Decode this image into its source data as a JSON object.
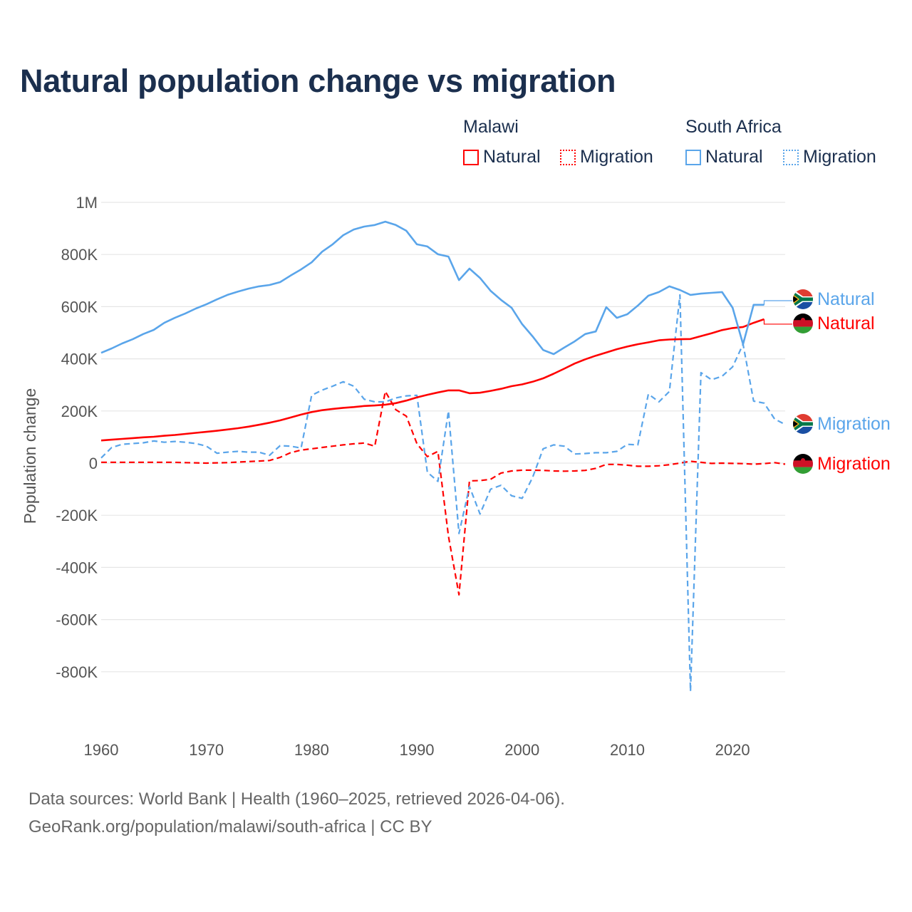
{
  "title": "Natural population change vs migration",
  "legend": {
    "groups": [
      {
        "name": "Malawi",
        "items": [
          "Natural",
          "Migration"
        ]
      },
      {
        "name": "South Africa",
        "items": [
          "Natural",
          "Migration"
        ]
      }
    ]
  },
  "colors": {
    "malawi": "#ff0000",
    "south_africa": "#5aa5ea",
    "grid": "#e6e6e6",
    "title": "#1b2f4e"
  },
  "end_labels": {
    "sa_natural": "Natural",
    "mw_natural": "Natural",
    "sa_migration": "Migration",
    "mw_migration": "Migration"
  },
  "footer": {
    "line1": "Data sources: World Bank | Health (1960–2025, retrieved 2026-04-06).",
    "line2": "GeoRank.org/population/malawi/south-africa | CC BY"
  },
  "chart_data": {
    "type": "line",
    "title": "Natural population change vs migration",
    "xlabel": "",
    "ylabel": "Population change",
    "xlim": [
      1960,
      2025
    ],
    "ylim": [
      -1000000,
      1000000
    ],
    "x_ticks": [
      1960,
      1970,
      1980,
      1990,
      2000,
      2010,
      2020
    ],
    "x_tick_labels": [
      "1960",
      "1970",
      "1980",
      "1990",
      "2000",
      "2010",
      "2020"
    ],
    "y_ticks": [
      1000000,
      800000,
      600000,
      400000,
      200000,
      0,
      -200000,
      -400000,
      -600000,
      -800000
    ],
    "y_tick_labels": [
      "1M",
      "800K",
      "600K",
      "400K",
      "200K",
      "0",
      "-200K",
      "-400K",
      "-600K",
      "-800K"
    ],
    "grid": true,
    "legend_placement": "top-right",
    "units": "thousands",
    "series": [
      {
        "name": "Malawi Natural",
        "country": "Malawi",
        "kind": "natural",
        "start_year": 1960,
        "values": [
          87,
          90,
          93,
          96,
          99,
          101,
          105,
          108,
          112,
          116,
          120,
          124,
          129,
          134,
          140,
          147,
          155,
          164,
          175,
          186,
          196,
          203,
          208,
          212,
          215,
          219,
          221,
          224,
          230,
          240,
          252,
          262,
          271,
          279,
          279,
          268,
          270,
          277,
          285,
          295,
          302,
          312,
          325,
          343,
          362,
          382,
          398,
          412,
          424,
          437,
          447,
          456,
          463,
          471,
          474,
          475,
          476,
          487,
          498,
          510,
          518,
          522,
          538,
          552
        ]
      },
      {
        "name": "Malawi Migration",
        "country": "Malawi",
        "kind": "migration",
        "start_year": 1960,
        "values": [
          3,
          3,
          3,
          3,
          3,
          3,
          3,
          3,
          2,
          1,
          0,
          1,
          2,
          4,
          6,
          8,
          10,
          22,
          40,
          50,
          55,
          60,
          65,
          70,
          74,
          77,
          65,
          275,
          205,
          180,
          75,
          25,
          45,
          -280,
          -505,
          -68,
          -67,
          -62,
          -38,
          -30,
          -27,
          -27,
          -28,
          -30,
          -31,
          -30,
          -28,
          -20,
          -5,
          -5,
          -8,
          -12,
          -12,
          -10,
          -6,
          0,
          7,
          3,
          -1,
          0,
          -1,
          -2,
          -4,
          -2,
          2,
          -4
        ]
      },
      {
        "name": "South Africa Natural",
        "country": "South Africa",
        "kind": "natural",
        "start_year": 1960,
        "values": [
          423,
          440,
          459,
          475,
          495,
          511,
          538,
          557,
          574,
          593,
          609,
          628,
          645,
          658,
          669,
          678,
          683,
          694,
          719,
          743,
          770,
          811,
          839,
          874,
          896,
          907,
          913,
          926,
          913,
          891,
          839,
          831,
          801,
          792,
          702,
          746,
          710,
          661,
          626,
          596,
          533,
          486,
          434,
          418,
          443,
          467,
          495,
          505,
          598,
          557,
          571,
          604,
          642,
          656,
          678,
          664,
          645,
          650,
          653,
          656,
          596,
          456,
          607,
          607
        ]
      },
      {
        "name": "South Africa Migration",
        "country": "South Africa",
        "kind": "migration",
        "start_year": 1960,
        "values": [
          20,
          60,
          72,
          75,
          78,
          85,
          80,
          83,
          80,
          75,
          65,
          38,
          42,
          45,
          42,
          42,
          30,
          67,
          65,
          58,
          260,
          280,
          295,
          312,
          295,
          245,
          235,
          235,
          250,
          258,
          260,
          -35,
          -70,
          200,
          -270,
          -90,
          -195,
          -100,
          -85,
          -125,
          -135,
          -55,
          55,
          70,
          65,
          35,
          37,
          40,
          40,
          45,
          72,
          70,
          265,
          235,
          275,
          645,
          -875,
          347,
          320,
          333,
          369,
          456,
          238,
          230,
          169,
          148
        ]
      }
    ]
  }
}
